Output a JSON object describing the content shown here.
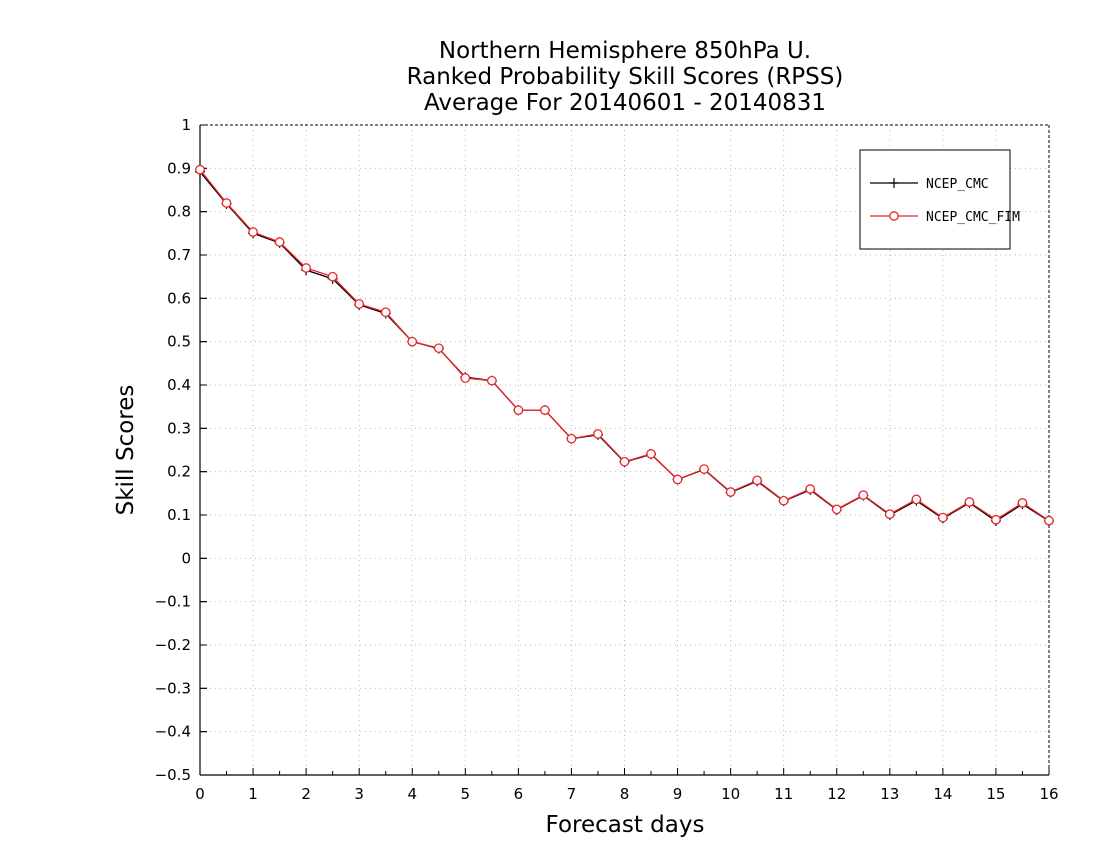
{
  "chart_data": {
    "type": "line",
    "title": [
      "Northern Hemisphere 850hPa U.",
      "Ranked Probability Skill Scores (RPSS)",
      "Average For 20140601 - 20140831"
    ],
    "xlabel": "Forecast days",
    "ylabel": "Skill Scores",
    "xlim": [
      0,
      16
    ],
    "ylim": [
      -0.5,
      1
    ],
    "xticks": [
      0,
      1,
      2,
      3,
      4,
      5,
      6,
      7,
      8,
      9,
      10,
      11,
      12,
      13,
      14,
      15,
      16
    ],
    "yticks": [
      -0.5,
      -0.4,
      -0.3,
      -0.2,
      -0.1,
      0,
      0.1,
      0.2,
      0.3,
      0.4,
      0.5,
      0.6,
      0.7,
      0.8,
      0.9,
      1
    ],
    "xtick_labels": [
      "0",
      "1",
      "2",
      "3",
      "4",
      "5",
      "6",
      "7",
      "8",
      "9",
      "10",
      "11",
      "12",
      "13",
      "14",
      "15",
      "16"
    ],
    "ytick_labels": [
      "−0.5",
      "−0.4",
      "−0.3",
      "−0.2",
      "−0.1",
      "0",
      "0.1",
      "0.2",
      "0.3",
      "0.4",
      "0.5",
      "0.6",
      "0.7",
      "0.8",
      "0.9",
      "1"
    ],
    "grid": true,
    "legend_position": "top-right",
    "x": [
      0,
      0.5,
      1,
      1.5,
      2,
      2.5,
      3,
      3.5,
      4,
      4.5,
      5,
      5.5,
      6,
      6.5,
      7,
      7.5,
      8,
      8.5,
      9,
      9.5,
      10,
      10.5,
      11,
      11.5,
      12,
      12.5,
      13,
      13.5,
      14,
      14.5,
      15,
      15.5,
      16
    ],
    "series": [
      {
        "name": "NCEP_CMC",
        "color": "#000000",
        "marker": "plus",
        "values": [
          0.892,
          0.818,
          0.75,
          0.728,
          0.665,
          0.645,
          0.585,
          0.565,
          0.5,
          0.484,
          0.418,
          0.41,
          0.342,
          0.342,
          0.276,
          0.285,
          0.222,
          0.24,
          0.182,
          0.205,
          0.152,
          0.178,
          0.132,
          0.158,
          0.112,
          0.145,
          0.1,
          0.133,
          0.092,
          0.128,
          0.086,
          0.125,
          0.086
        ]
      },
      {
        "name": "NCEP_CMC_FIM",
        "color": "#e8262a",
        "marker": "circle",
        "values": [
          0.897,
          0.82,
          0.753,
          0.73,
          0.67,
          0.65,
          0.587,
          0.568,
          0.5,
          0.485,
          0.416,
          0.41,
          0.342,
          0.342,
          0.276,
          0.287,
          0.223,
          0.241,
          0.182,
          0.206,
          0.153,
          0.18,
          0.133,
          0.16,
          0.113,
          0.146,
          0.102,
          0.136,
          0.094,
          0.13,
          0.089,
          0.128,
          0.087
        ]
      }
    ]
  }
}
